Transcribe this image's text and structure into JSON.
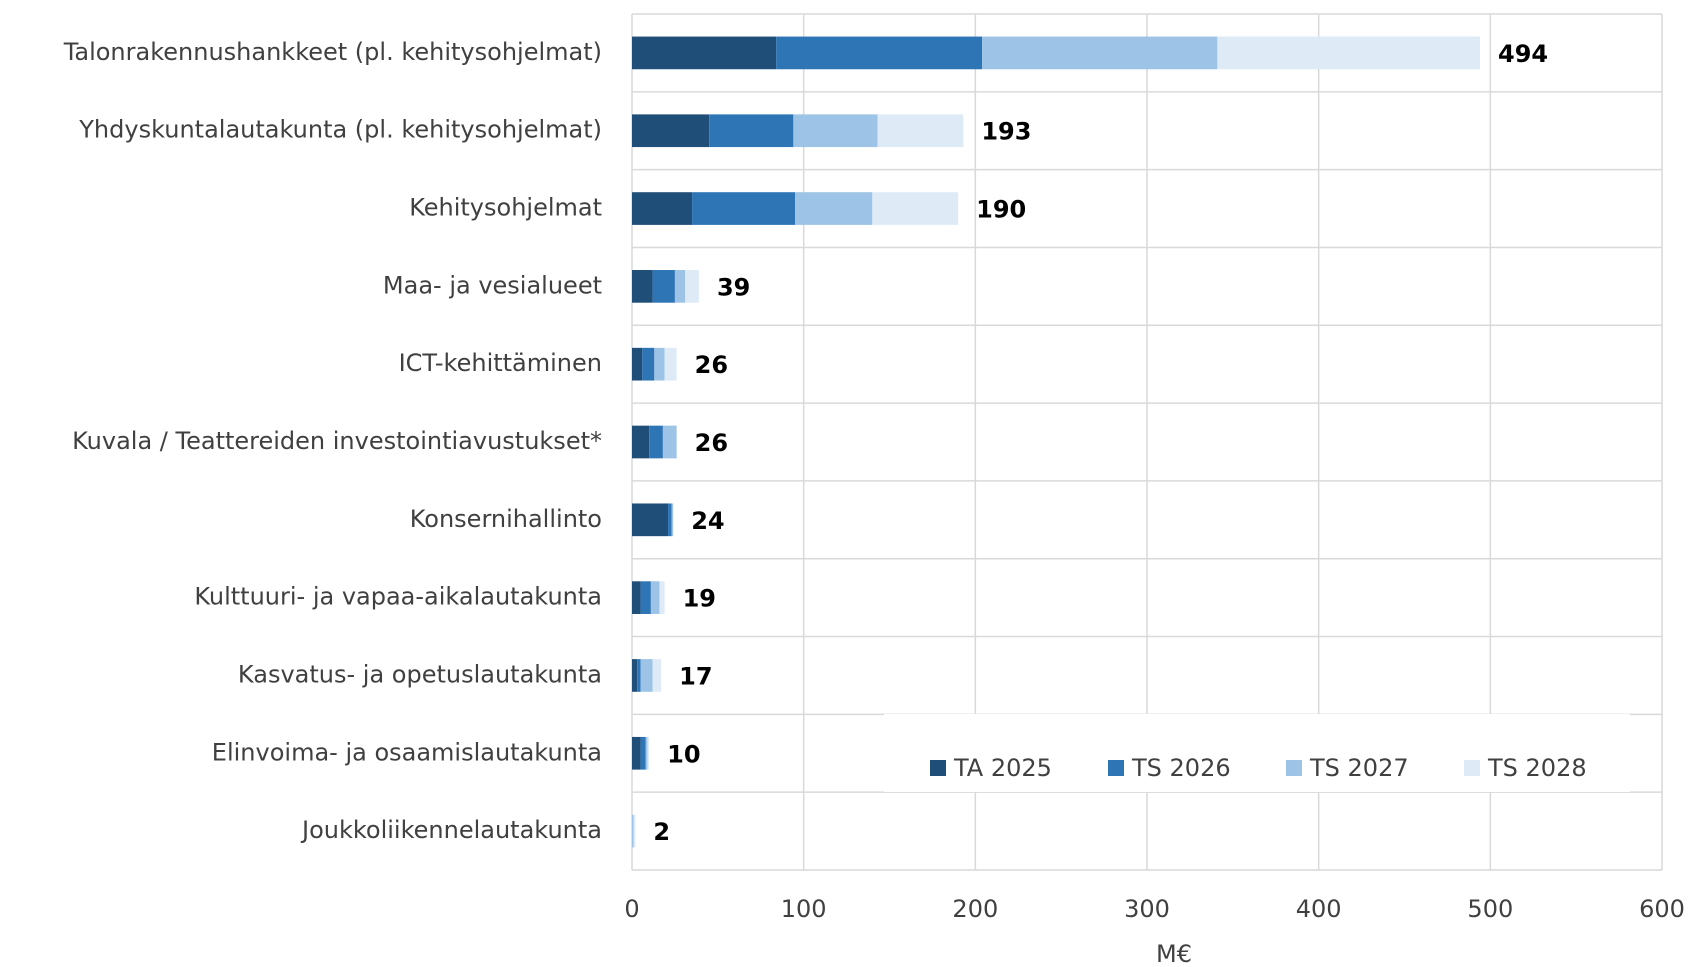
{
  "chart_data": {
    "type": "stacked_barh",
    "categories": [
      "Talonrakennushankkeet (pl. kehitysohjelmat)",
      "Yhdyskuntalautakunta (pl. kehitysohjelmat)",
      "Kehitysohjelmat",
      "Maa- ja vesialueet",
      "ICT-kehittäminen",
      "Kuvala / Teattereiden investointiavustukset*",
      "Konsernihallinto",
      "Kulttuuri- ja vapaa-aikalautakunta",
      "Kasvatus- ja opetuslautakunta",
      "Elinvoima- ja osaamislautakunta",
      "Joukkoliikennelautakunta"
    ],
    "series": [
      {
        "name": "TA 2025",
        "color": "#1f4e79",
        "values": [
          84,
          45,
          35,
          12,
          6,
          10,
          21,
          5,
          3,
          5,
          0
        ]
      },
      {
        "name": "TS 2026",
        "color": "#2e75b6",
        "values": [
          120,
          49,
          60,
          13,
          7,
          8,
          2,
          6,
          2,
          3,
          0
        ]
      },
      {
        "name": "TS 2027",
        "color": "#9dc3e6",
        "values": [
          137,
          49,
          45,
          6,
          6,
          8,
          1,
          5,
          7,
          1,
          1
        ]
      },
      {
        "name": "TS 2028",
        "color": "#deebf7",
        "values": [
          153,
          50,
          50,
          8,
          7,
          0,
          0,
          3,
          5,
          1,
          1
        ]
      }
    ],
    "totals": [
      494,
      193,
      190,
      39,
      26,
      26,
      24,
      19,
      17,
      10,
      2
    ],
    "xlabel": "M€",
    "xlim": [
      0,
      600
    ],
    "xticks": [
      0,
      100,
      200,
      300,
      400,
      500,
      600
    ],
    "grid": true,
    "legend": "lower right"
  }
}
